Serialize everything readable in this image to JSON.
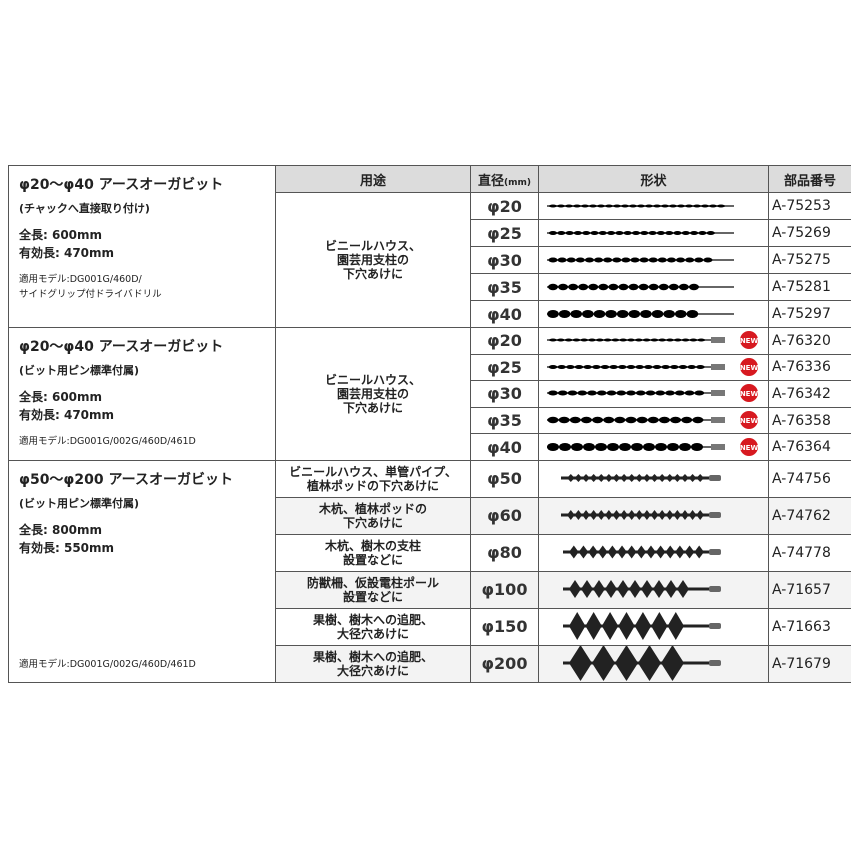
{
  "header": {
    "use": "用途",
    "diameter": "直径",
    "diameter_unit": "(mm)",
    "shape": "形状",
    "part": "部品番号"
  },
  "groups": [
    {
      "title": "φ20〜φ40 アースオーガビット",
      "subtitle": "(チャックへ直接取り付け)",
      "total_length": "全長: 600mm",
      "effective_length": "有効長: 470mm",
      "model_1": "適用モデル:DG001G/460D/",
      "model_2": "サイドグリップ付ドライバドリル",
      "use": [
        "ビニールハウス、",
        "園芸用支柱の",
        "下穴あけに"
      ],
      "rows": [
        {
          "dia": "φ20",
          "part": "A-75253"
        },
        {
          "dia": "φ25",
          "part": "A-75269"
        },
        {
          "dia": "φ30",
          "part": "A-75275"
        },
        {
          "dia": "φ35",
          "part": "A-75281"
        },
        {
          "dia": "φ40",
          "part": "A-75297"
        }
      ]
    },
    {
      "title": "φ20〜φ40 アースオーガビット",
      "subtitle": "(ビット用ピン標準付属)",
      "total_length": "全長: 600mm",
      "effective_length": "有効長: 470mm",
      "model_1": "適用モデル:DG001G/002G/460D/461D",
      "use": [
        "ビニールハウス、",
        "園芸用支柱の",
        "下穴あけに"
      ],
      "badge": "NEW",
      "rows": [
        {
          "dia": "φ20",
          "part": "A-76320"
        },
        {
          "dia": "φ25",
          "part": "A-76336"
        },
        {
          "dia": "φ30",
          "part": "A-76342"
        },
        {
          "dia": "φ35",
          "part": "A-76358"
        },
        {
          "dia": "φ40",
          "part": "A-76364"
        }
      ]
    },
    {
      "title": "φ50〜φ200 アースオーガビット",
      "subtitle": "(ビット用ピン標準付属)",
      "total_length": "全長: 800mm",
      "effective_length": "有効長: 550mm",
      "model_1": "適用モデル:DG001G/002G/460D/461D",
      "rows": [
        {
          "use": [
            "ビニールハウス、単管パイプ、",
            "植林ポッドの下穴あけに"
          ],
          "dia": "φ50",
          "part": "A-74756"
        },
        {
          "use": [
            "木杭、植林ポッドの",
            "下穴あけに"
          ],
          "dia": "φ60",
          "part": "A-74762"
        },
        {
          "use": [
            "木杭、樹木の支柱",
            "設置などに"
          ],
          "dia": "φ80",
          "part": "A-74778"
        },
        {
          "use": [
            "防獣柵、仮設電柱ポール",
            "設置などに"
          ],
          "dia": "φ100",
          "part": "A-71657"
        },
        {
          "use": [
            "果樹、樹木への追肥、",
            "大径穴あけに"
          ],
          "dia": "φ150",
          "part": "A-71663"
        },
        {
          "use": [
            "果樹、樹木への追肥、",
            "大径穴あけに"
          ],
          "dia": "φ200",
          "part": "A-71679"
        }
      ]
    }
  ],
  "colors": {
    "badge": "#d71920",
    "header_bg": "#dcdcdc",
    "border": "#555555"
  }
}
